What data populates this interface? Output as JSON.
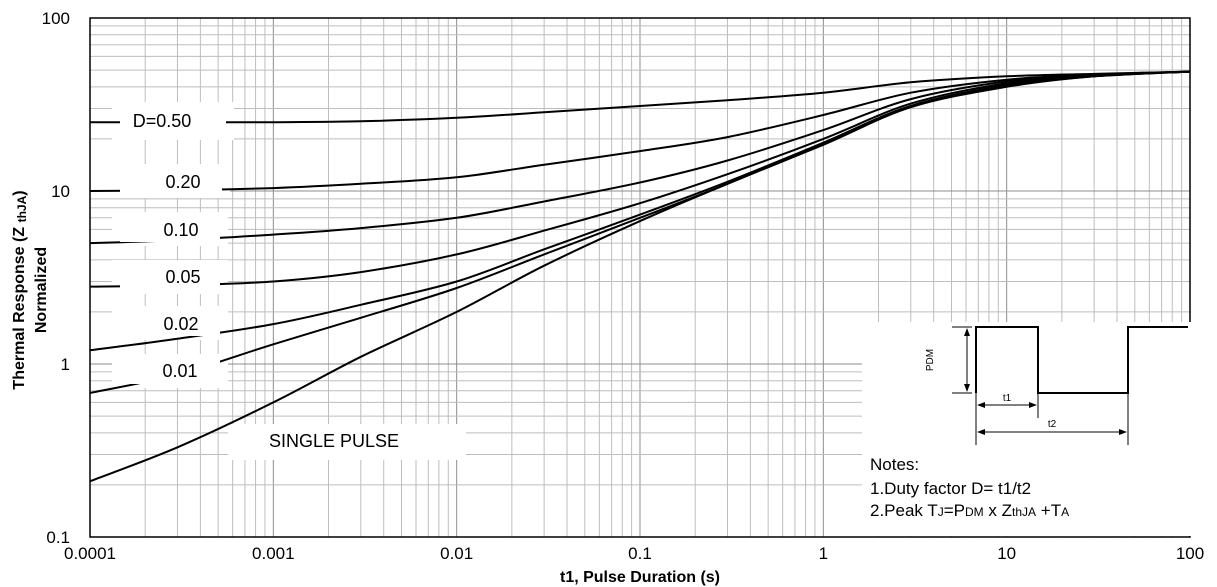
{
  "chart_data": {
    "type": "line",
    "xlabel": "t1, Pulse Duration (s)",
    "ylabel_line1": "Thermal Response (Z ",
    "ylabel_sub": "thJA",
    "ylabel_close": ")",
    "ylabel_line2": "Normalized",
    "x_scale": "log",
    "y_scale": "log",
    "xlim": [
      0.0001,
      100
    ],
    "ylim": [
      0.1,
      100
    ],
    "x_ticks": [
      "0.0001",
      "0.001",
      "0.01",
      "0.1",
      "1",
      "10",
      "100"
    ],
    "y_ticks": [
      "100",
      "10",
      "1",
      "0.1"
    ],
    "grid": true,
    "series": [
      {
        "name": "D=0.50",
        "x": [
          0.0001,
          0.0003,
          0.001,
          0.003,
          0.01,
          0.03,
          0.1,
          0.3,
          1,
          3,
          10,
          30,
          100
        ],
        "y": [
          25,
          25,
          25,
          25.3,
          26.5,
          28.5,
          31,
          33.5,
          37,
          42.5,
          46,
          47.5,
          49
        ]
      },
      {
        "name": "0.20",
        "x": [
          0.0001,
          0.0003,
          0.001,
          0.003,
          0.01,
          0.03,
          0.1,
          0.3,
          1,
          3,
          10,
          30,
          100
        ],
        "y": [
          10,
          10.1,
          10.4,
          11,
          12,
          14.2,
          17,
          20.5,
          27.5,
          37,
          44,
          47,
          49
        ]
      },
      {
        "name": "0.10",
        "x": [
          0.0001,
          0.0003,
          0.001,
          0.003,
          0.01,
          0.03,
          0.1,
          0.3,
          1,
          3,
          10,
          30,
          100
        ],
        "y": [
          5,
          5.2,
          5.6,
          6.1,
          7,
          8.7,
          11.2,
          15,
          22.5,
          34,
          43,
          47,
          49
        ]
      },
      {
        "name": "0.05",
        "x": [
          0.0001,
          0.0003,
          0.001,
          0.003,
          0.01,
          0.03,
          0.1,
          0.3,
          1,
          3,
          10,
          30,
          100
        ],
        "y": [
          2.8,
          2.85,
          3,
          3.4,
          4.3,
          5.9,
          8.5,
          12.5,
          20,
          32,
          42,
          46.5,
          49
        ]
      },
      {
        "name": "0.02",
        "x": [
          0.0001,
          0.0003,
          0.001,
          0.003,
          0.01,
          0.03,
          0.1,
          0.3,
          1,
          3,
          10,
          30,
          100
        ],
        "y": [
          1.2,
          1.4,
          1.7,
          2.2,
          3.0,
          4.6,
          7.3,
          11.3,
          19,
          31,
          41,
          46,
          49
        ]
      },
      {
        "name": "0.01",
        "x": [
          0.0001,
          0.0003,
          0.001,
          0.003,
          0.01,
          0.03,
          0.1,
          0.3,
          1,
          3,
          10,
          30,
          100
        ],
        "y": [
          0.68,
          0.87,
          1.3,
          1.85,
          2.75,
          4.3,
          7.0,
          11,
          19,
          31,
          40.5,
          46,
          49
        ]
      },
      {
        "name": "SINGLE PULSE",
        "x": [
          0.0001,
          0.0003,
          0.001,
          0.003,
          0.01,
          0.03,
          0.1,
          0.3,
          1,
          3,
          10,
          30,
          100
        ],
        "y": [
          0.21,
          0.33,
          0.6,
          1.1,
          2.0,
          3.7,
          6.7,
          11,
          18.5,
          30.5,
          40,
          46,
          49
        ]
      }
    ],
    "series_labels": [
      {
        "name": "D=0.50",
        "text": "D=0.50"
      },
      {
        "name": "0.20",
        "text": "0.20"
      },
      {
        "name": "0.10",
        "text": "0.10"
      },
      {
        "name": "0.05",
        "text": "0.05"
      },
      {
        "name": "0.02",
        "text": "0.02"
      },
      {
        "name": "0.01",
        "text": "0.01"
      },
      {
        "name": "SINGLE PULSE",
        "text": "SINGLE PULSE"
      }
    ],
    "annotations": {
      "notes_title": "Notes:",
      "note1": "1.Duty factor D= t1/t2",
      "note2_prefix": "2.Peak T",
      "note2_sub_j": "J",
      "note2_eq": "=P",
      "note2_sub_dm": "DM",
      "note2_x": " x Z",
      "note2_sub_thja": "thJA",
      "note2_plus": " +T",
      "note2_sub_a": "A",
      "waveform": {
        "pdm_label": "PDM",
        "t1_label": "t1",
        "t2_label": "t2"
      }
    }
  }
}
